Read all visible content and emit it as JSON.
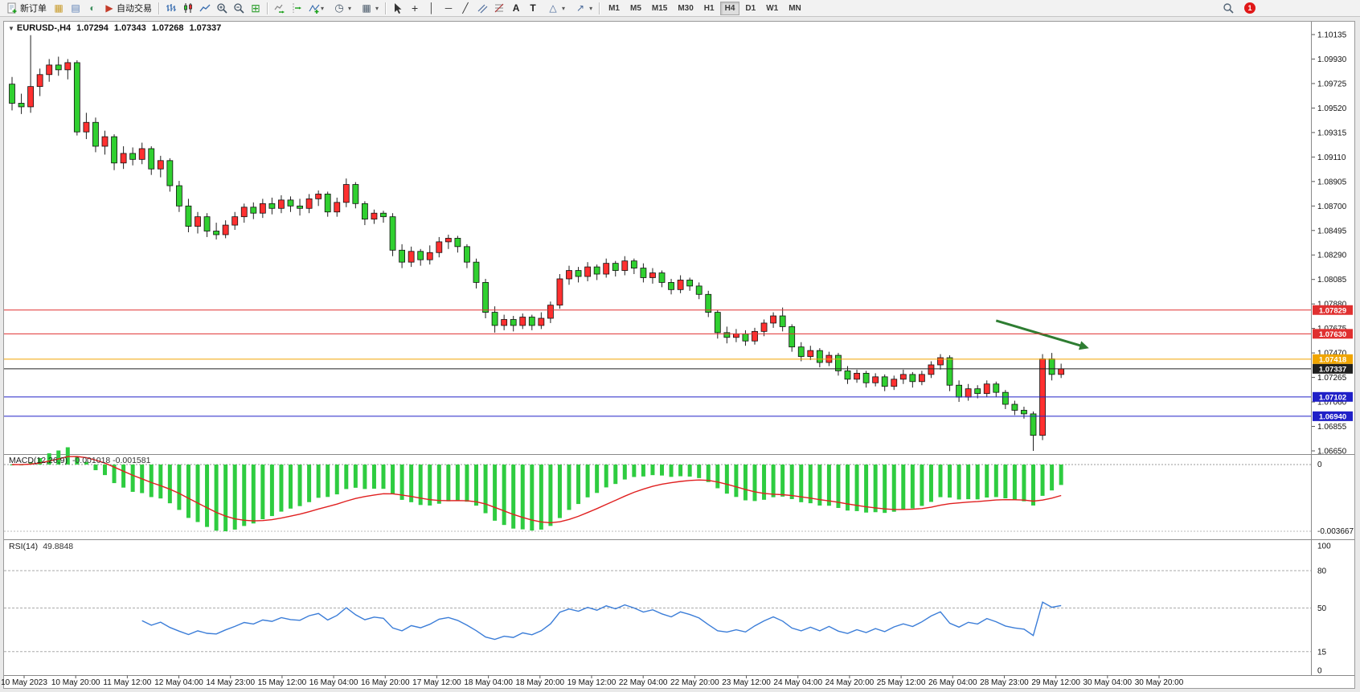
{
  "toolbar": {
    "new_order_label": "新订单",
    "autotrading_label": "自动交易",
    "timeframes": [
      "M1",
      "M5",
      "M15",
      "M30",
      "H1",
      "H4",
      "D1",
      "W1",
      "MN"
    ],
    "active_timeframe": "H4",
    "notification_count": "1"
  },
  "chart_header": {
    "symbol": "EURUSD-,H4",
    "open": "1.07294",
    "high": "1.07343",
    "low": "1.07268",
    "close": "1.07337"
  },
  "price_axis_ticks": [
    "1.10135",
    "1.09930",
    "1.09725",
    "1.09520",
    "1.09315",
    "1.09110",
    "1.08905",
    "1.08700",
    "1.08495",
    "1.08290",
    "1.08085",
    "1.07880",
    "1.07675",
    "1.07470",
    "1.07265",
    "1.07060",
    "1.06855",
    "1.06650"
  ],
  "time_axis_labels": [
    "10 May 2023",
    "10 May 20:00",
    "11 May 12:00",
    "12 May 04:00",
    "14 May 23:00",
    "15 May 12:00",
    "16 May 04:00",
    "16 May 20:00",
    "17 May 12:00",
    "18 May 04:00",
    "18 May 20:00",
    "19 May 12:00",
    "22 May 04:00",
    "22 May 20:00",
    "23 May 12:00",
    "24 May 04:00",
    "24 May 20:00",
    "25 May 12:00",
    "26 May 04:00",
    "28 May 23:00",
    "29 May 12:00",
    "30 May 04:00",
    "30 May 20:00"
  ],
  "levels": [
    {
      "label": "1.07829",
      "price": 1.07829,
      "color": "#e03030"
    },
    {
      "label": "1.07630",
      "price": 1.0763,
      "color": "#e03030"
    },
    {
      "label": "1.07418",
      "price": 1.07418,
      "color": "#f0a500"
    },
    {
      "label": "1.07337",
      "price": 1.07337,
      "color": "#202020"
    },
    {
      "label": "1.07102",
      "price": 1.07102,
      "color": "#2020c8"
    },
    {
      "label": "1.06940",
      "price": 1.0694,
      "color": "#2020c8"
    }
  ],
  "indicators": {
    "macd": {
      "name": "MACD(12,26,9)",
      "values": "-0.001018 -0.001581",
      "fast": 12,
      "slow": 26,
      "signal": 9,
      "axis_labels": [
        "0",
        "-0.003667"
      ],
      "histogram_color": "#2ecc40",
      "signal_color": "#e02020"
    },
    "rsi": {
      "name": "RSI(14)",
      "value": "49.8848",
      "period": 14,
      "axis_labels": [
        "100",
        "80",
        "50",
        "15",
        "0"
      ],
      "guide_levels": [
        80,
        50,
        15
      ],
      "line_color": "#3b7dd8"
    }
  },
  "chart_data": {
    "type": "candlestick",
    "symbol": "EURUSD",
    "timeframe": "H4",
    "bull_color": "#ff3030",
    "bear_color": "#30d030",
    "ohlc": [
      [
        1.0972,
        1.0978,
        1.095,
        1.0956
      ],
      [
        1.0956,
        1.0964,
        1.0947,
        1.0953
      ],
      [
        1.0953,
        1.1013,
        1.0948,
        1.097
      ],
      [
        1.097,
        1.0985,
        1.0962,
        1.098
      ],
      [
        1.098,
        1.0993,
        1.0974,
        1.0988
      ],
      [
        1.0988,
        1.0995,
        1.0979,
        1.0984
      ],
      [
        1.0984,
        1.0993,
        1.0976,
        1.099
      ],
      [
        1.099,
        1.0992,
        1.0929,
        1.0932
      ],
      [
        1.0932,
        1.0948,
        1.0926,
        1.094
      ],
      [
        1.094,
        1.0944,
        1.0915,
        1.092
      ],
      [
        1.092,
        1.0933,
        1.0913,
        1.0928
      ],
      [
        1.0928,
        1.093,
        1.09,
        1.0906
      ],
      [
        1.0906,
        1.092,
        1.0901,
        1.0914
      ],
      [
        1.0914,
        1.0919,
        1.0904,
        1.0909
      ],
      [
        1.0909,
        1.0923,
        1.0905,
        1.0918
      ],
      [
        1.0918,
        1.092,
        1.0896,
        1.0901
      ],
      [
        1.0901,
        1.0912,
        1.0894,
        1.0908
      ],
      [
        1.0908,
        1.091,
        1.0882,
        1.0887
      ],
      [
        1.0887,
        1.0891,
        1.0865,
        1.087
      ],
      [
        1.087,
        1.0876,
        1.0848,
        1.0853
      ],
      [
        1.0853,
        1.0865,
        1.0847,
        1.0861
      ],
      [
        1.0861,
        1.0864,
        1.0844,
        1.0849
      ],
      [
        1.0849,
        1.0856,
        1.0842,
        1.0846
      ],
      [
        1.0846,
        1.0858,
        1.0843,
        1.0854
      ],
      [
        1.0854,
        1.0865,
        1.085,
        1.0861
      ],
      [
        1.0861,
        1.0872,
        1.0856,
        1.0869
      ],
      [
        1.0869,
        1.0873,
        1.0859,
        1.0864
      ],
      [
        1.0864,
        1.0876,
        1.086,
        1.0872
      ],
      [
        1.0872,
        1.0877,
        1.0863,
        1.0868
      ],
      [
        1.0868,
        1.0879,
        1.0864,
        1.0875
      ],
      [
        1.0875,
        1.0878,
        1.0865,
        1.087
      ],
      [
        1.087,
        1.0876,
        1.0862,
        1.0868
      ],
      [
        1.0868,
        1.088,
        1.0864,
        1.0876
      ],
      [
        1.0876,
        1.0883,
        1.087,
        1.088
      ],
      [
        1.088,
        1.0882,
        1.0861,
        1.0865
      ],
      [
        1.0865,
        1.0877,
        1.0861,
        1.0873
      ],
      [
        1.0873,
        1.0893,
        1.0869,
        1.0888
      ],
      [
        1.0888,
        1.089,
        1.0868,
        1.0872
      ],
      [
        1.0872,
        1.0874,
        1.0854,
        1.0859
      ],
      [
        1.0859,
        1.0867,
        1.0855,
        1.0864
      ],
      [
        1.0864,
        1.0866,
        1.0856,
        1.0861
      ],
      [
        1.0861,
        1.0864,
        1.0828,
        1.0833
      ],
      [
        1.0833,
        1.0838,
        1.0818,
        1.0823
      ],
      [
        1.0823,
        1.0836,
        1.0819,
        1.0832
      ],
      [
        1.0832,
        1.0834,
        1.082,
        1.0825
      ],
      [
        1.0825,
        1.0837,
        1.0821,
        1.0831
      ],
      [
        1.0831,
        1.0844,
        1.0827,
        1.084
      ],
      [
        1.084,
        1.0846,
        1.0834,
        1.0843
      ],
      [
        1.0843,
        1.0845,
        1.0831,
        1.0836
      ],
      [
        1.0836,
        1.0838,
        1.0818,
        1.0823
      ],
      [
        1.0823,
        1.0826,
        1.0801,
        1.0806
      ],
      [
        1.0806,
        1.0809,
        1.0776,
        1.0781
      ],
      [
        1.0781,
        1.0786,
        1.0764,
        1.077
      ],
      [
        1.077,
        1.0779,
        1.0766,
        1.0775
      ],
      [
        1.0775,
        1.0778,
        1.0765,
        1.077
      ],
      [
        1.077,
        1.078,
        1.0767,
        1.0777
      ],
      [
        1.0777,
        1.0779,
        1.0766,
        1.077
      ],
      [
        1.077,
        1.0781,
        1.0767,
        1.0776
      ],
      [
        1.0776,
        1.079,
        1.0772,
        1.0787
      ],
      [
        1.0787,
        1.0813,
        1.0784,
        1.0809
      ],
      [
        1.0809,
        1.082,
        1.0804,
        1.0816
      ],
      [
        1.0816,
        1.0819,
        1.0806,
        1.0811
      ],
      [
        1.0811,
        1.0823,
        1.0807,
        1.0819
      ],
      [
        1.0819,
        1.0821,
        1.0808,
        1.0813
      ],
      [
        1.0813,
        1.0826,
        1.081,
        1.0822
      ],
      [
        1.0822,
        1.0824,
        1.0811,
        1.0816
      ],
      [
        1.0816,
        1.0828,
        1.0812,
        1.0824
      ],
      [
        1.0824,
        1.0826,
        1.0813,
        1.0818
      ],
      [
        1.0818,
        1.0822,
        1.0806,
        1.081
      ],
      [
        1.081,
        1.0818,
        1.0805,
        1.0814
      ],
      [
        1.0814,
        1.0816,
        1.0802,
        1.0806
      ],
      [
        1.0806,
        1.0809,
        1.0796,
        1.08
      ],
      [
        1.08,
        1.0812,
        1.0797,
        1.0808
      ],
      [
        1.0808,
        1.081,
        1.0799,
        1.0803
      ],
      [
        1.0803,
        1.0806,
        1.0792,
        1.0796
      ],
      [
        1.0796,
        1.0799,
        1.0777,
        1.0781
      ],
      [
        1.0781,
        1.0783,
        1.0759,
        1.0764
      ],
      [
        1.0764,
        1.0769,
        1.0755,
        1.076
      ],
      [
        1.076,
        1.0767,
        1.0756,
        1.0763
      ],
      [
        1.0763,
        1.0766,
        1.0753,
        1.0757
      ],
      [
        1.0757,
        1.0768,
        1.0754,
        1.0765
      ],
      [
        1.0765,
        1.0775,
        1.0761,
        1.0772
      ],
      [
        1.0772,
        1.0781,
        1.0768,
        1.0778
      ],
      [
        1.0778,
        1.0785,
        1.0765,
        1.0769
      ],
      [
        1.0769,
        1.0771,
        1.0748,
        1.0752
      ],
      [
        1.0752,
        1.0756,
        1.074,
        1.0744
      ],
      [
        1.0744,
        1.0753,
        1.0741,
        1.0749
      ],
      [
        1.0749,
        1.0751,
        1.0735,
        1.0739
      ],
      [
        1.0739,
        1.0748,
        1.0736,
        1.0745
      ],
      [
        1.0745,
        1.0747,
        1.0728,
        1.0732
      ],
      [
        1.0732,
        1.0736,
        1.0721,
        1.0725
      ],
      [
        1.0725,
        1.0733,
        1.0722,
        1.073
      ],
      [
        1.073,
        1.0732,
        1.0718,
        1.0722
      ],
      [
        1.0722,
        1.073,
        1.0719,
        1.0727
      ],
      [
        1.0727,
        1.0729,
        1.0715,
        1.0719
      ],
      [
        1.0719,
        1.0728,
        1.0716,
        1.0725
      ],
      [
        1.0725,
        1.0733,
        1.0721,
        1.0729
      ],
      [
        1.0729,
        1.0731,
        1.0718,
        1.0723
      ],
      [
        1.0723,
        1.0732,
        1.072,
        1.0729
      ],
      [
        1.0729,
        1.074,
        1.0726,
        1.0737
      ],
      [
        1.0737,
        1.0746,
        1.0733,
        1.0743
      ],
      [
        1.0743,
        1.0745,
        1.0715,
        1.072
      ],
      [
        1.072,
        1.0724,
        1.0706,
        1.071
      ],
      [
        1.071,
        1.0721,
        1.0707,
        1.0717
      ],
      [
        1.0717,
        1.072,
        1.0709,
        1.0713
      ],
      [
        1.0713,
        1.0724,
        1.071,
        1.0721
      ],
      [
        1.0721,
        1.0723,
        1.071,
        1.0714
      ],
      [
        1.0714,
        1.0716,
        1.07,
        1.0704
      ],
      [
        1.0704,
        1.0707,
        1.0695,
        1.0699
      ],
      [
        1.0699,
        1.0702,
        1.0692,
        1.0696
      ],
      [
        1.0696,
        1.0698,
        1.0665,
        1.0678
      ],
      [
        1.0678,
        1.0746,
        1.0674,
        1.0742
      ],
      [
        1.0742,
        1.0747,
        1.0724,
        1.0729
      ],
      [
        1.0729,
        1.0738,
        1.0726,
        1.07337
      ]
    ],
    "annotations": [
      {
        "type": "arrow",
        "from_index": 106,
        "from_price": 1.0774,
        "to_index": 116,
        "to_price": 1.0751,
        "color": "#2e7d32"
      }
    ]
  }
}
